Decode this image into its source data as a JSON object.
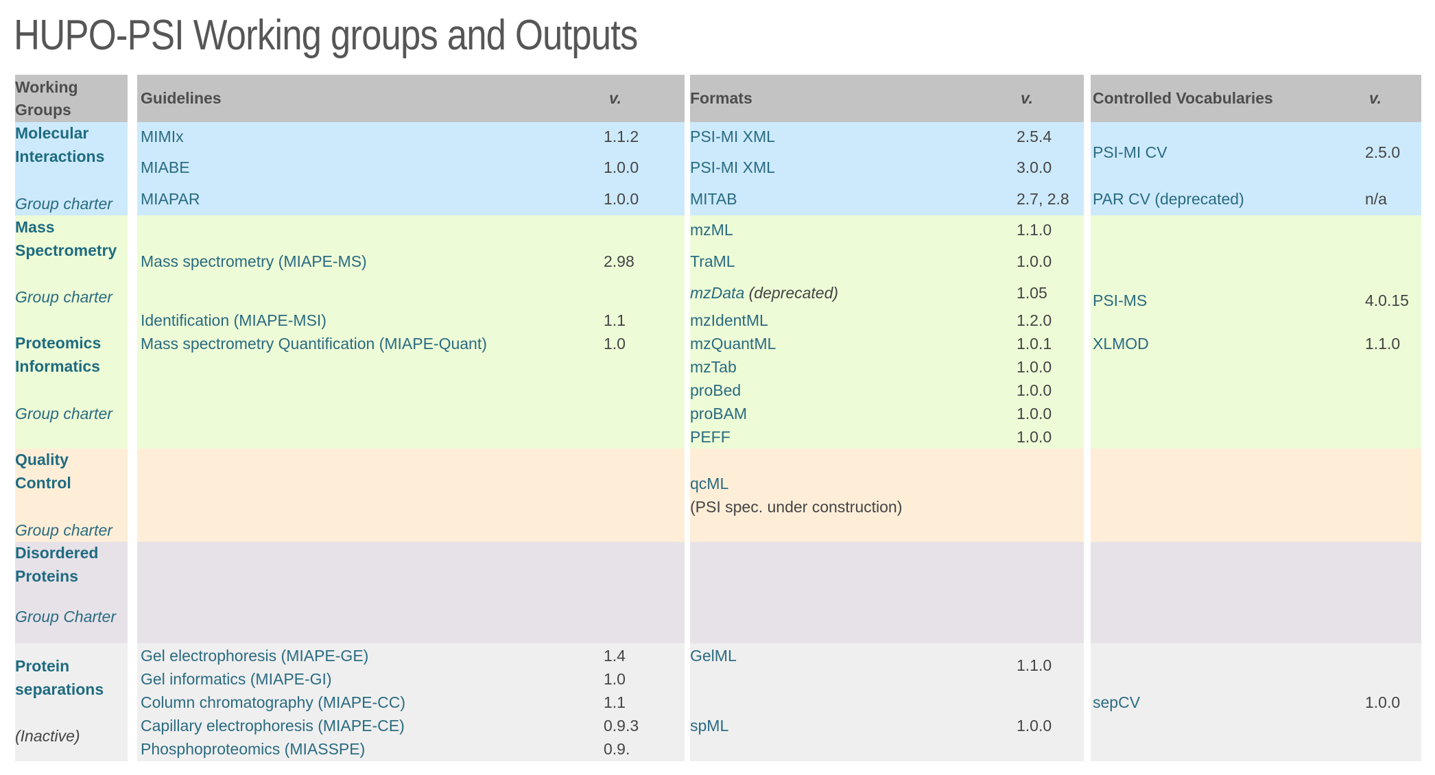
{
  "title": "HUPO-PSI Working groups and Outputs",
  "colors": {
    "header": "#c3c3c3",
    "molecular": "#cdeafc",
    "green": "#edfbd7",
    "orange": "#feeed8",
    "lavender": "#e7e2e8",
    "lightgray": "#efefef",
    "link": "#2a6b80"
  },
  "headers": {
    "groups_line1": "Working",
    "groups_line2": "Groups",
    "guidelines": "Guidelines",
    "guidelines_v": "v.",
    "formats": "Formats",
    "formats_v": "v.",
    "cv": "Controlled Vocabularies",
    "cv_v": "v."
  },
  "mi": {
    "name1": "Molecular",
    "name2": "Interactions",
    "charter": "Group charter",
    "guidelines": [
      {
        "name": "MIMIx",
        "v": "1.1.2"
      },
      {
        "name": "MIABE",
        "v": "1.0.0"
      },
      {
        "name": "MIAPAR",
        "v": "1.0.0"
      }
    ],
    "formats": [
      {
        "name": "PSI-MI XML",
        "v": "2.5.4"
      },
      {
        "name": "PSI-MI XML",
        "v": "3.0.0"
      },
      {
        "name": "MITAB",
        "v": "2.7, 2.8"
      }
    ],
    "cv": [
      {
        "name": "PSI-MI CV",
        "v": "2.5.0"
      },
      {
        "name": "PAR CV (deprecated)",
        "v": "n/a"
      }
    ]
  },
  "ms": {
    "name1": "Mass",
    "name2": "Spectrometry",
    "charter": "Group charter",
    "guidelines": [
      {
        "name": "Mass spectrometry (MIAPE-MS)",
        "v": "2.98"
      },
      {
        "name": "Identification (MIAPE-MSI)",
        "v": "1.1"
      }
    ],
    "formats": [
      {
        "name": "mzML",
        "v": "1.1.0"
      },
      {
        "name": "TraML",
        "v": "1.0.0"
      },
      {
        "name": "mzData",
        "note": " (deprecated)",
        "v": "1.05"
      },
      {
        "name": "mzIdentML",
        "v": "1.2.0"
      }
    ],
    "cv": [
      {
        "name": "PSI-MS",
        "v": "4.0.15"
      }
    ]
  },
  "pi": {
    "name1": "Proteomics",
    "name2": "Informatics",
    "charter": "Group charter",
    "guidelines": [
      {
        "name": "Mass spectrometry Quantification (MIAPE-Quant)",
        "v": "1.0"
      }
    ],
    "formats": [
      {
        "name": "mzQuantML",
        "v": "1.0.1"
      },
      {
        "name": "mzTab",
        "v": "1.0.0"
      },
      {
        "name": "proBed",
        "v": "1.0.0"
      },
      {
        "name": "proBAM",
        "v": "1.0.0"
      },
      {
        "name": "PEFF",
        "v": "1.0.0"
      }
    ],
    "cv": [
      {
        "name": "XLMOD",
        "v": "1.1.0"
      }
    ]
  },
  "qc": {
    "name1": "Quality",
    "name2": "Control",
    "charter": "Group charter",
    "format": "qcML",
    "format_note": "(PSI spec. under construction)"
  },
  "dp": {
    "name1": "Disordered",
    "name2": "Proteins",
    "charter": "Group Charter"
  },
  "ps": {
    "name1": "Protein",
    "name2": "separations",
    "status": "(Inactive)",
    "guidelines": [
      {
        "name": "Gel electrophoresis (MIAPE-GE)",
        "v": "1.4"
      },
      {
        "name": "Gel informatics (MIAPE-GI)",
        "v": "1.0"
      },
      {
        "name": "Column chromatography (MIAPE-CC)",
        "v": "1.1"
      },
      {
        "name": "Capillary electrophoresis (MIAPE-CE)",
        "v": "0.9.3"
      },
      {
        "name": "Phosphoproteomics (MIASSPE)",
        "v": "0.9."
      }
    ],
    "formats": [
      {
        "name": "GelML",
        "v": "1.1.0"
      },
      {
        "name": "spML",
        "v": "1.0.0"
      }
    ],
    "cv": [
      {
        "name": "sepCV",
        "v": "1.0.0"
      }
    ]
  }
}
